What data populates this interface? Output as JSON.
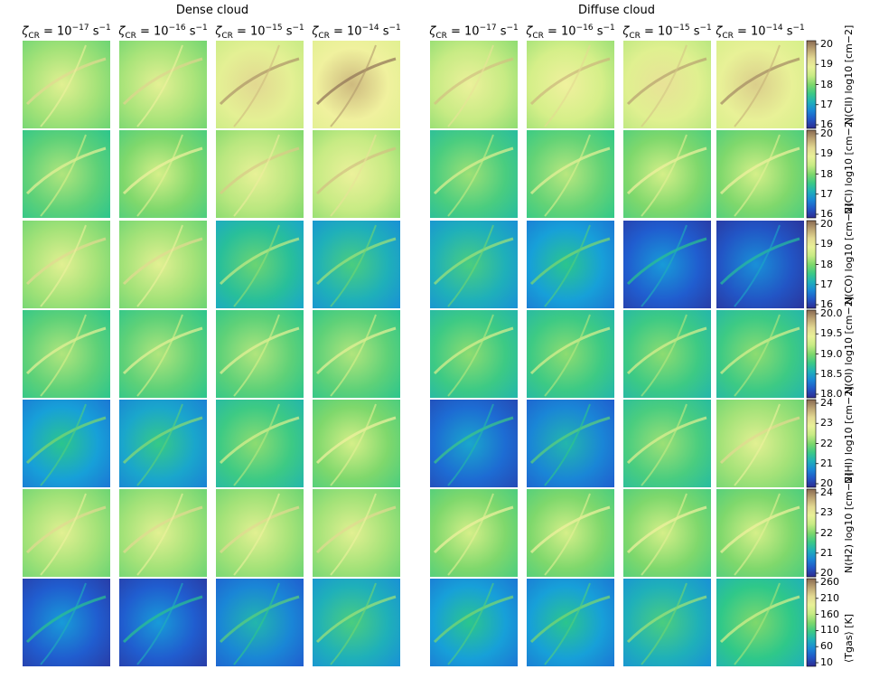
{
  "groups": [
    {
      "title": "Dense cloud"
    },
    {
      "title": "Diffuse cloud"
    }
  ],
  "columns": [
    {
      "symbol": "ζ",
      "sub": "CR",
      "eq": " = 10",
      "exp": "−17",
      "unit": " s",
      "unit_exp": "−1"
    },
    {
      "symbol": "ζ",
      "sub": "CR",
      "eq": " = 10",
      "exp": "−16",
      "unit": " s",
      "unit_exp": "−1"
    },
    {
      "symbol": "ζ",
      "sub": "CR",
      "eq": " = 10",
      "exp": "−15",
      "unit": " s",
      "unit_exp": "−1"
    },
    {
      "symbol": "ζ",
      "sub": "CR",
      "eq": " = 10",
      "exp": "−14",
      "unit": " s",
      "unit_exp": "−1"
    }
  ],
  "chart_data": {
    "type": "heatmap",
    "colormap": [
      "#2d2c91",
      "#1f5fd2",
      "#17a0d8",
      "#2cc78a",
      "#7fd86c",
      "#d9f08a",
      "#f2f1a0",
      "#c9b37a",
      "#8a6a52"
    ],
    "rows": [
      {
        "label_main": "N(CII)",
        "label_unit": "log10 [cm−2]",
        "ticks": [
          "20",
          "19",
          "18",
          "17",
          "16"
        ],
        "range": [
          16,
          20
        ],
        "dense": [
          0.55,
          0.56,
          0.68,
          0.74
        ],
        "diffuse": [
          0.6,
          0.62,
          0.66,
          0.7
        ]
      },
      {
        "label_main": "N(CI)",
        "label_unit": "log10 [cm−2]",
        "ticks": [
          "20",
          "19",
          "18",
          "17",
          "16"
        ],
        "range": [
          16,
          20
        ],
        "dense": [
          0.45,
          0.5,
          0.58,
          0.6
        ],
        "diffuse": [
          0.42,
          0.46,
          0.5,
          0.5
        ]
      },
      {
        "label_main": "N(CO)",
        "label_unit": "log10 [cm−2]",
        "ticks": [
          "20",
          "19",
          "18",
          "17",
          "16"
        ],
        "range": [
          16,
          20
        ],
        "dense": [
          0.55,
          0.55,
          0.35,
          0.3
        ],
        "diffuse": [
          0.3,
          0.25,
          0.12,
          0.1
        ]
      },
      {
        "label_main": "N(OI)",
        "label_unit": "log10 [cm−2]",
        "ticks": [
          "20.0",
          "19.5",
          "19.0",
          "18.5",
          "18.0"
        ],
        "range": [
          18,
          20
        ],
        "dense": [
          0.45,
          0.45,
          0.45,
          0.45
        ],
        "diffuse": [
          0.4,
          0.4,
          0.4,
          0.4
        ]
      },
      {
        "label_main": "N(HI)",
        "label_unit": "log10 [cm−2]",
        "ticks": [
          "24",
          "23",
          "22",
          "21",
          "20"
        ],
        "range": [
          20,
          24
        ],
        "dense": [
          0.25,
          0.27,
          0.4,
          0.5
        ],
        "diffuse": [
          0.15,
          0.2,
          0.42,
          0.55
        ]
      },
      {
        "label_main": "N(H2)",
        "label_unit": "log10 [cm−2]",
        "ticks": [
          "24",
          "23",
          "22",
          "21",
          "20"
        ],
        "range": [
          20,
          24
        ],
        "dense": [
          0.55,
          0.55,
          0.55,
          0.55
        ],
        "diffuse": [
          0.5,
          0.5,
          0.5,
          0.5
        ]
      },
      {
        "label_main": "⟨Tgas⟩ [K]",
        "label_unit": "",
        "ticks": [
          "260",
          "210",
          "160",
          "110",
          "60",
          "10"
        ],
        "range": [
          10,
          260
        ],
        "dense": [
          0.12,
          0.12,
          0.2,
          0.3
        ],
        "diffuse": [
          0.25,
          0.25,
          0.3,
          0.38
        ]
      }
    ]
  }
}
